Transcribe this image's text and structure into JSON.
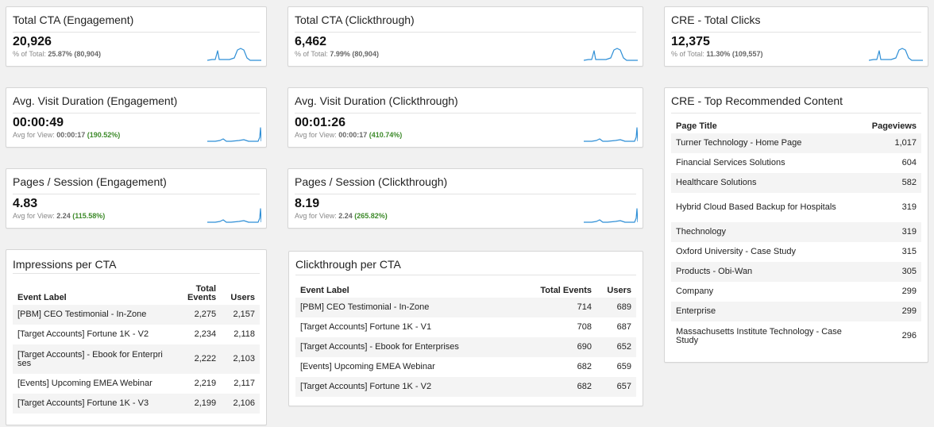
{
  "scorecards": [
    {
      "id": "total-cta-engagement",
      "title": "Total CTA (Engagement)",
      "value": "20,926",
      "sub_label": "% of Total:",
      "sub_a": "25.87%",
      "sub_b": "(80,904)",
      "spark": "twin"
    },
    {
      "id": "total-cta-clickthrough",
      "title": "Total CTA (Clickthrough)",
      "value": "6,462",
      "sub_label": "% of Total:",
      "sub_a": "7.99%",
      "sub_b": "(80,904)",
      "spark": "twin"
    },
    {
      "id": "cre-total-clicks",
      "title": "CRE - Total Clicks",
      "value": "12,375",
      "sub_label": "% of Total:",
      "sub_a": "11.30%",
      "sub_b": "(109,557)",
      "spark": "twin"
    },
    {
      "id": "avg-visit-duration-engagement",
      "title": "Avg. Visit Duration (Engagement)",
      "value": "00:00:49",
      "sub_label": "Avg for View:",
      "sub_a": "00:00:17",
      "sub_b": "(190.52%)",
      "spark": "rise"
    },
    {
      "id": "avg-visit-duration-clickthrough",
      "title": "Avg. Visit Duration (Clickthrough)",
      "value": "00:01:26",
      "sub_label": "Avg for View:",
      "sub_a": "00:00:17",
      "sub_b": "(410.74%)",
      "spark": "rise"
    },
    {
      "id": "pages-session-engagement",
      "title": "Pages / Session (Engagement)",
      "value": "4.83",
      "sub_label": "Avg for View:",
      "sub_a": "2.24",
      "sub_b": "(115.58%)",
      "spark": "rise"
    },
    {
      "id": "pages-session-clickthrough",
      "title": "Pages / Session (Clickthrough)",
      "value": "8.19",
      "sub_label": "Avg for View:",
      "sub_a": "2.24",
      "sub_b": "(265.82%)",
      "spark": "rise"
    }
  ],
  "impressions": {
    "title": "Impressions per CTA",
    "headers": {
      "label": "Event Label",
      "events": "Total Events",
      "users": "Users"
    },
    "rows": [
      {
        "label": "[PBM] CEO Testimonial - In-Zone",
        "events": "2,275",
        "users": "2,157"
      },
      {
        "label": "[Target Accounts] Fortune 1K - V2",
        "events": "2,234",
        "users": "2,118"
      },
      {
        "label": "[Target Accounts] - Ebook for Enterprises",
        "events": "2,222",
        "users": "2,103"
      },
      {
        "label": "[Events] Upcoming EMEA Webinar",
        "events": "2,219",
        "users": "2,117"
      },
      {
        "label": "[Target Accounts] Fortune 1K - V3",
        "events": "2,199",
        "users": "2,106"
      }
    ]
  },
  "clickthrough": {
    "title": "Clickthrough per CTA",
    "headers": {
      "label": "Event Label",
      "events": "Total Events",
      "users": "Users"
    },
    "rows": [
      {
        "label": "[PBM] CEO Testimonial - In-Zone",
        "events": "714",
        "users": "689"
      },
      {
        "label": "[Target Accounts] Fortune 1K - V1",
        "events": "708",
        "users": "687"
      },
      {
        "label": "[Target Accounts] - Ebook for Enterprises",
        "events": "690",
        "users": "652"
      },
      {
        "label": "[Events] Upcoming EMEA Webinar",
        "events": "682",
        "users": "659"
      },
      {
        "label": "[Target Accounts] Fortune 1K - V2",
        "events": "682",
        "users": "657"
      }
    ]
  },
  "top_content": {
    "title": "CRE - Top Recommended Content",
    "headers": {
      "label": "Page Title",
      "views": "Pageviews"
    },
    "rows": [
      {
        "label": "Turner Technology - Home Page",
        "views": "1,017"
      },
      {
        "label": "Financial Services Solutions",
        "views": "604"
      },
      {
        "label": "Healthcare Solutions",
        "views": "582"
      },
      {
        "label": "Hybrid Cloud Based Backup for Hospitals",
        "views": "319"
      },
      {
        "label": "Thechnology",
        "views": "319"
      },
      {
        "label": "Oxford University - Case Study",
        "views": "315"
      },
      {
        "label": "Products - Obi-Wan",
        "views": "305"
      },
      {
        "label": "Company",
        "views": "299"
      },
      {
        "label": "Enterprise",
        "views": "299"
      },
      {
        "label": "Massachusetts Institute Technology - Case Study",
        "views": "296"
      }
    ]
  },
  "colors": {
    "sparkline": "#2f8fd6",
    "positive": "#3d8a2a"
  }
}
